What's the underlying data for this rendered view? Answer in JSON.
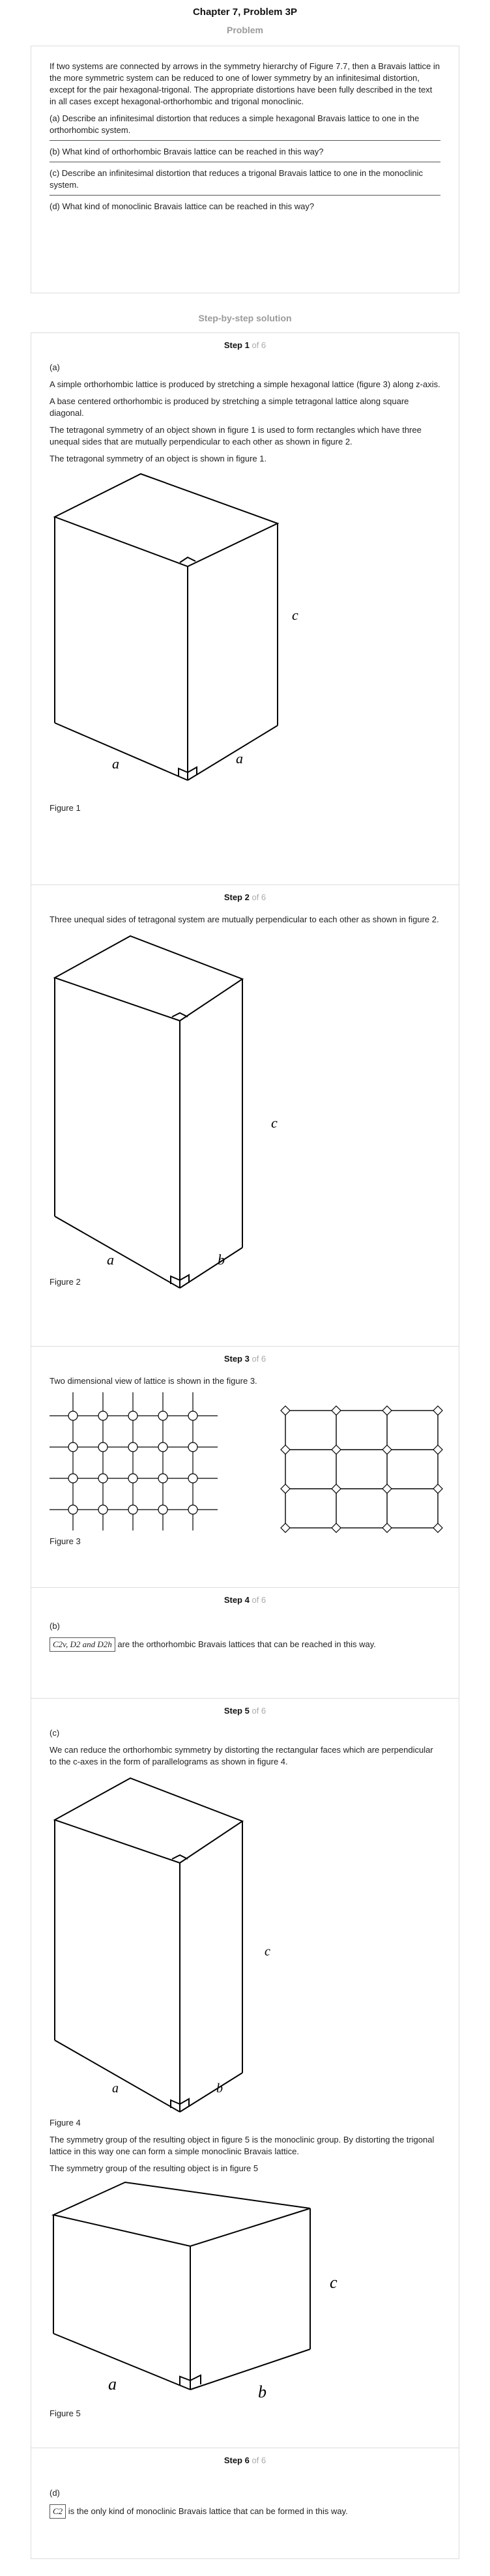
{
  "chapter_title": "Chapter 7, Problem 3P",
  "problem_label": "Problem",
  "problem": {
    "intro": "If two systems are connected by arrows in the symmetry hierarchy of Figure 7.7, then a Bravais lattice in the more symmetric system can be reduced to one of lower symmetry by an infinitesimal distortion, except for the pair hexagonal-trigonal. The appropriate distortions have been fully described in the text in all cases except hexagonal-orthorhombic and trigonal monoclinic.",
    "parts": [
      "(a) Describe an infinitesimal distortion that reduces a simple hexagonal Bravais lattice to one in the orthorhombic system.",
      "(b) What kind of orthorhombic Bravais lattice can be reached in this way?",
      "(c) Describe an infinitesimal distortion that reduces a trigonal Bravais lattice to one in the monoclinic system.",
      "(d) What kind of monoclinic Bravais lattice can be reached in this way?"
    ]
  },
  "solution_label": "Step-by-step solution",
  "steps": {
    "s1": {
      "step": "Step 1",
      "of": "of 6",
      "part": "(a)",
      "p1": "A simple orthorhombic lattice is produced by stretching a simple hexagonal lattice (figure 3) along z-axis.",
      "p2": "A base centered orthorhombic is produced by stretching a simple tetragonal lattice along square diagonal.",
      "p3": "The tetragonal symmetry of an object shown in figure 1 is used to form rectangles which have three unequal sides that are mutually perpendicular to each other as shown in figure 2.",
      "p4": "The tetragonal symmetry of an object is shown in figure 1.",
      "fig_label_a1": "a",
      "fig_label_a2": "a",
      "fig_label_c": "c",
      "caption": "Figure 1"
    },
    "s2": {
      "step": "Step 2",
      "of": "of 6",
      "p1": "Three unequal sides of tetragonal system are mutually perpendicular to each other as shown in figure 2.",
      "fig_label_a": "a",
      "fig_label_b": "b",
      "fig_label_c": "c",
      "caption": "Figure 2"
    },
    "s3": {
      "step": "Step 3",
      "of": "of 6",
      "p1": "Two dimensional view of lattice is shown in the figure 3.",
      "caption": "Figure 3"
    },
    "s4": {
      "step": "Step 4",
      "of": "of 6",
      "part": "(b)",
      "boxed": "C2v, D2 and D2h",
      "text": " are the orthorhombic Bravais lattices that can be reached in this way."
    },
    "s5": {
      "step": "Step 5",
      "of": "of 6",
      "part": "(c)",
      "p1": "We can reduce the orthorhombic symmetry by distorting the rectangular faces which are perpendicular to the c-axes in the form of parallelograms as shown in figure 4.",
      "fig4_a": "a",
      "fig4_b": "b",
      "fig4_c": "c",
      "caption4": "Figure 4",
      "p2": "The symmetry group of the resulting object in figure 5 is the monoclinic group. By distorting the trigonal lattice in this way one can form a simple monoclinic Bravais lattice.",
      "p3": "The symmetry group of the resulting object is in figure 5",
      "fig5_a": "a",
      "fig5_b": "b",
      "fig5_c": "c",
      "caption5": "Figure 5"
    },
    "s6": {
      "step": "Step 6",
      "of": "of 6",
      "part": "(d)",
      "boxed": "C2",
      "text": " is the only kind of monoclinic Bravais lattice that can be formed in this way."
    }
  }
}
